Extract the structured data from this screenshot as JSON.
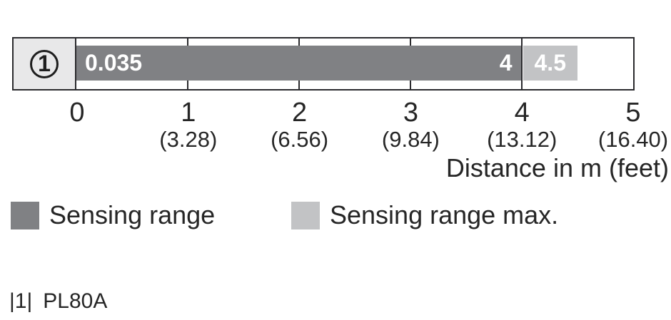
{
  "chart_data": {
    "type": "bar",
    "orientation": "horizontal",
    "title": "",
    "xlabel": "Distance in m (feet)",
    "xlim": [
      0,
      5
    ],
    "grid": "vertical ticks at each meter",
    "legend_position": "bottom",
    "x_ticks": [
      {
        "m": "0",
        "feet": ""
      },
      {
        "m": "1",
        "feet": "(3.28)"
      },
      {
        "m": "2",
        "feet": "(6.56)"
      },
      {
        "m": "3",
        "feet": "(9.84)"
      },
      {
        "m": "4",
        "feet": "(13.12)"
      },
      {
        "m": "5",
        "feet": "(16.40)"
      }
    ],
    "rows": [
      {
        "marker": "1",
        "segments": [
          {
            "name": "Sensing range",
            "start_m": 0.035,
            "end_m": 4,
            "start_label": "0.035",
            "end_label": "4",
            "color": "#808184"
          },
          {
            "name": "Sensing range max.",
            "start_m": 4,
            "end_m": 4.5,
            "label": "4.5",
            "color": "#c2c3c5"
          }
        ]
      }
    ]
  },
  "legend": {
    "items": [
      {
        "label": "Sensing range",
        "color": "#808184"
      },
      {
        "label": "Sensing range max.",
        "color": "#c2c3c5"
      }
    ]
  },
  "footnote": {
    "ref": "|1|",
    "label": "PL80A"
  },
  "colors": {
    "bar_dark": "#808184",
    "bar_light": "#c2c3c5",
    "marker_box_bg": "#e8e8e9",
    "frame_border": "#2b2b2e",
    "text": "#262626",
    "bar_label_text": "#ffffff"
  }
}
